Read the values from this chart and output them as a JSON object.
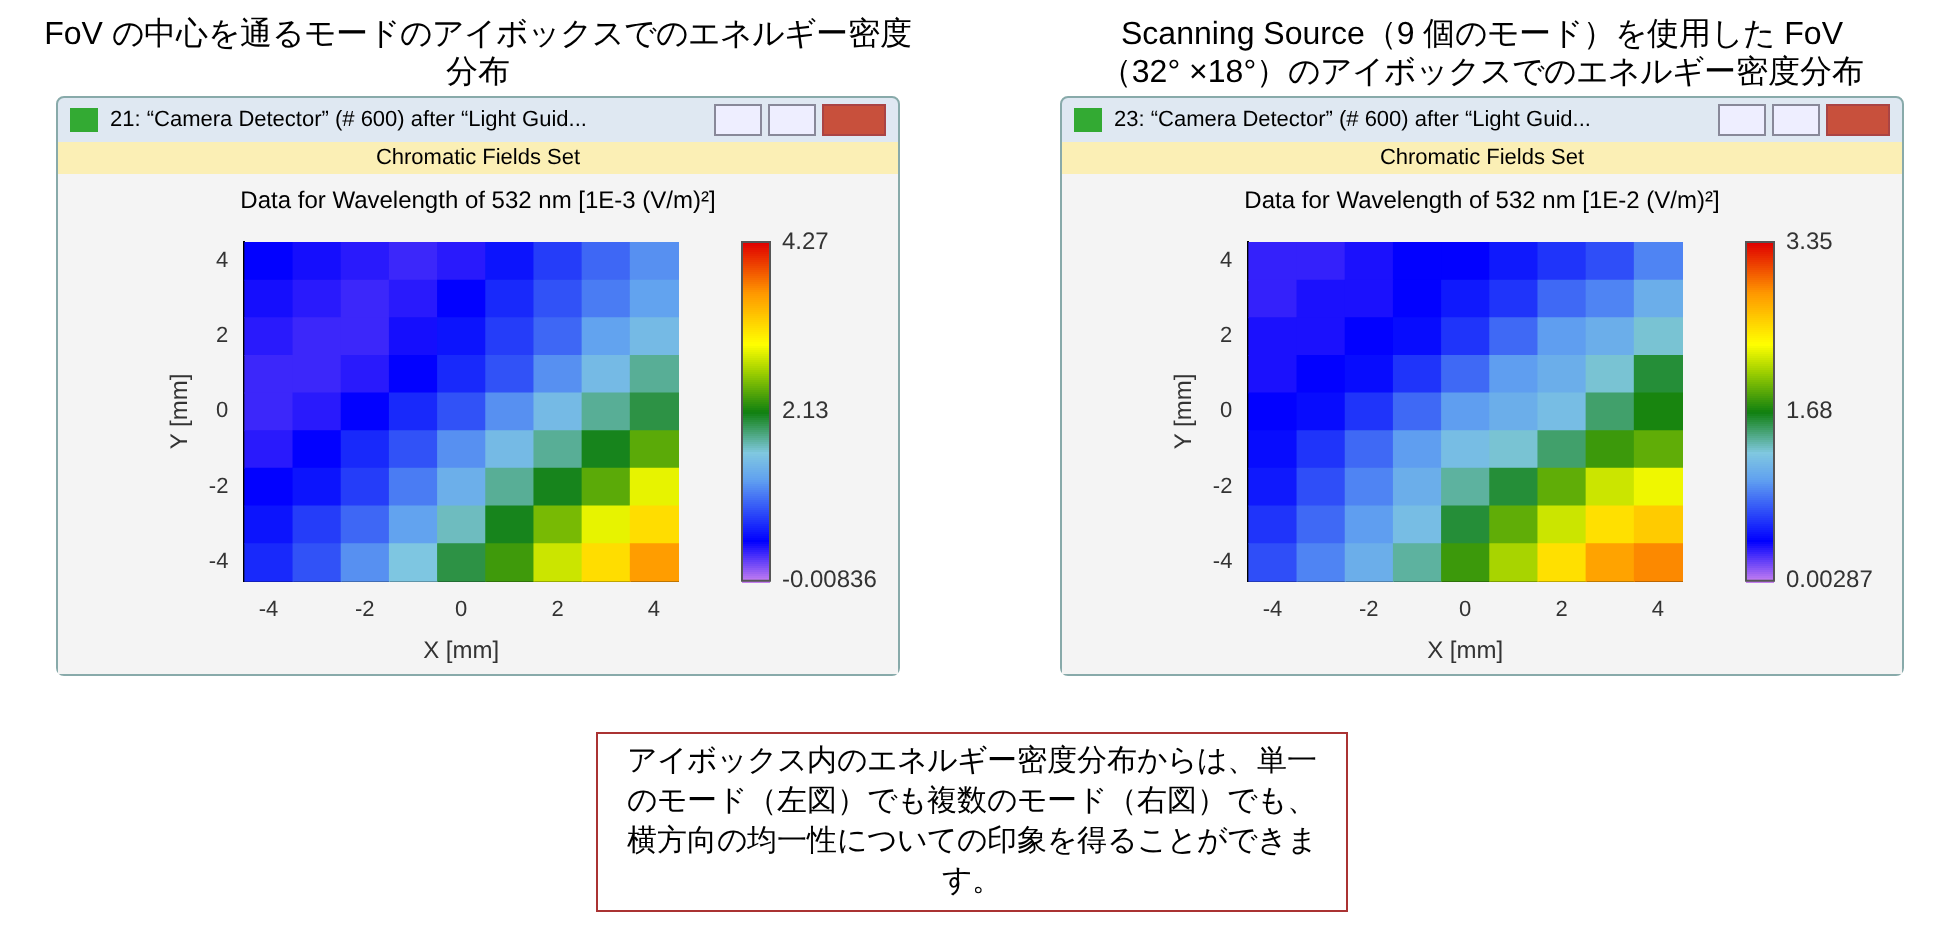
{
  "chart_data": [
    {
      "type": "heatmap",
      "title": "FoV の中心を通るモードのアイボックスでのエネルギー密度分布",
      "subtitle": "Data for Wavelength of 532 nm  [1E-3 (V/m)²]",
      "xlabel": "X [mm]",
      "ylabel": "Y [mm]",
      "annotations": [
        "21: “Camera Detector” (# 600) after “Light Guid...",
        "Chromatic Fields Set",
        "アイボックス内のエネルギー密度分布からは、単一のモード（左図）でも複数のモード（右図）でも、横方向の均一性についての印象を得ることができます。"
      ],
      "categories": [
        "-4",
        null,
        "-2",
        null,
        "0",
        null,
        "2",
        null,
        "4"
      ],
      "y_categories": [
        "4",
        null,
        "2",
        null,
        "0",
        null,
        "-2",
        null,
        "-4"
      ],
      "clim": [
        -0.00836,
        4.27
      ],
      "cticks": [
        -0.00836,
        2.13,
        4.27
      ],
      "cells": [
        [
          0.5,
          0.45,
          0.4,
          0.35,
          0.4,
          0.6,
          0.8,
          1.0,
          1.2
        ],
        [
          0.45,
          0.4,
          0.35,
          0.4,
          0.5,
          0.7,
          0.9,
          1.1,
          1.3
        ],
        [
          0.4,
          0.35,
          0.35,
          0.45,
          0.6,
          0.8,
          1.0,
          1.3,
          1.5
        ],
        [
          0.35,
          0.35,
          0.4,
          0.5,
          0.7,
          0.9,
          1.2,
          1.5,
          1.8
        ],
        [
          0.35,
          0.4,
          0.5,
          0.7,
          0.9,
          1.2,
          1.5,
          1.8,
          2.0
        ],
        [
          0.4,
          0.5,
          0.7,
          0.9,
          1.2,
          1.5,
          1.8,
          2.1,
          2.4
        ],
        [
          0.5,
          0.6,
          0.8,
          1.1,
          1.4,
          1.8,
          2.1,
          2.4,
          2.9
        ],
        [
          0.6,
          0.8,
          1.0,
          1.3,
          1.7,
          2.1,
          2.5,
          2.9,
          3.2
        ],
        [
          0.7,
          0.9,
          1.2,
          1.6,
          2.0,
          2.3,
          2.8,
          3.2,
          3.6
        ]
      ]
    },
    {
      "type": "heatmap",
      "title": "Scanning Source（9 個のモード）を使用した FoV\n（32° ×18°）のアイボックスでのエネルギー密度分布",
      "subtitle": "Data for Wavelength of 532 nm  [1E-2 (V/m)²]",
      "xlabel": "X [mm]",
      "ylabel": "Y [mm]",
      "annotations": [
        "23: “Camera Detector” (# 600) after “Light Guid...",
        "Chromatic Fields Set"
      ],
      "categories": [
        "-4",
        null,
        "-2",
        null,
        "0",
        null,
        "2",
        null,
        "4"
      ],
      "y_categories": [
        "4",
        null,
        "2",
        null,
        "0",
        null,
        "-2",
        null,
        "-4"
      ],
      "clim": [
        0.00287,
        3.35
      ],
      "cticks": [
        0.00287,
        1.68,
        3.35
      ],
      "cells": [
        [
          0.3,
          0.3,
          0.35,
          0.4,
          0.4,
          0.5,
          0.6,
          0.7,
          0.9
        ],
        [
          0.3,
          0.35,
          0.35,
          0.4,
          0.5,
          0.6,
          0.8,
          0.9,
          1.1
        ],
        [
          0.35,
          0.35,
          0.4,
          0.45,
          0.6,
          0.8,
          1.0,
          1.1,
          1.3
        ],
        [
          0.35,
          0.4,
          0.45,
          0.6,
          0.8,
          1.0,
          1.1,
          1.3,
          1.6
        ],
        [
          0.4,
          0.45,
          0.6,
          0.8,
          1.0,
          1.1,
          1.2,
          1.5,
          1.7
        ],
        [
          0.45,
          0.6,
          0.8,
          1.0,
          1.2,
          1.3,
          1.5,
          1.8,
          1.9
        ],
        [
          0.5,
          0.7,
          0.9,
          1.1,
          1.4,
          1.6,
          1.9,
          2.2,
          2.3
        ],
        [
          0.6,
          0.8,
          1.0,
          1.2,
          1.6,
          1.9,
          2.2,
          2.5,
          2.6
        ],
        [
          0.7,
          0.9,
          1.1,
          1.4,
          1.8,
          2.1,
          2.5,
          2.8,
          2.9
        ]
      ]
    }
  ]
}
